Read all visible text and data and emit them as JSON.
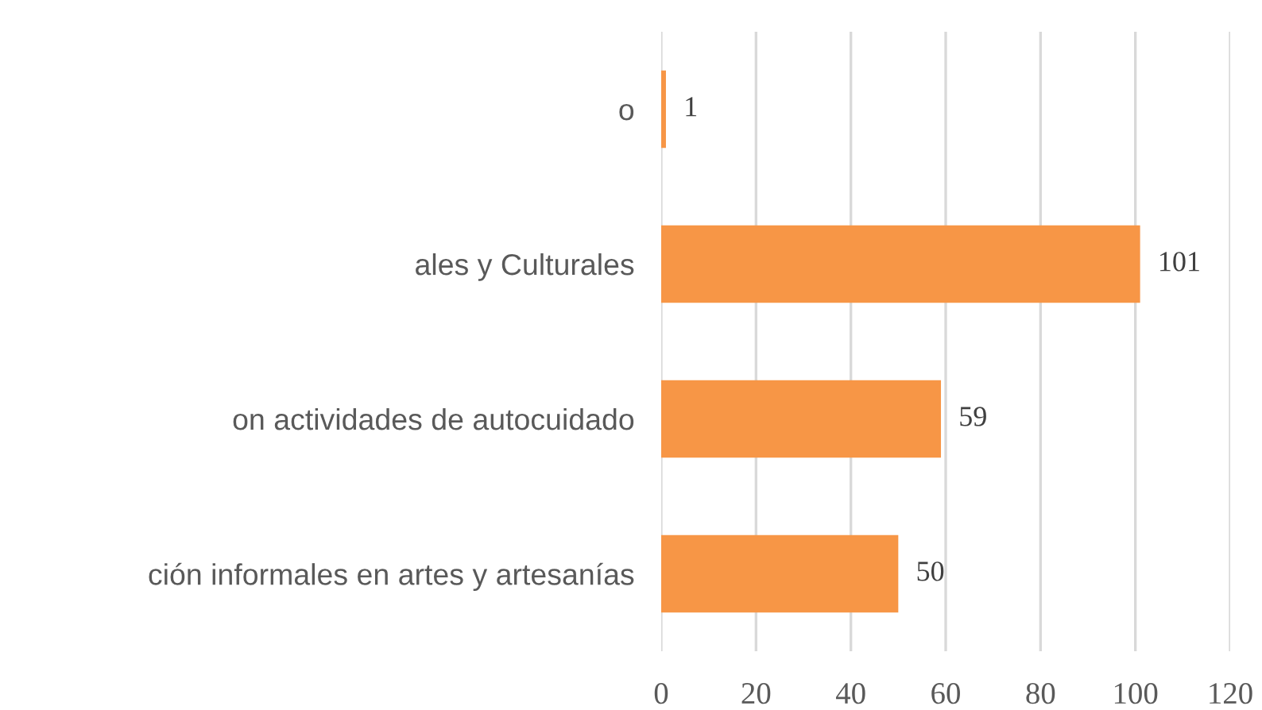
{
  "chart_data": {
    "type": "bar",
    "orientation": "horizontal",
    "categories": [
      "o",
      "ales y Culturales",
      "on actividades de autocuidado",
      "ción informales en artes y artesanías"
    ],
    "values": [
      1,
      101,
      59,
      50
    ],
    "color": "#f79646",
    "xlim": [
      0,
      120
    ],
    "xticks": [
      0,
      20,
      40,
      60,
      80,
      100,
      120
    ],
    "grid": "x",
    "data_labels": true
  }
}
